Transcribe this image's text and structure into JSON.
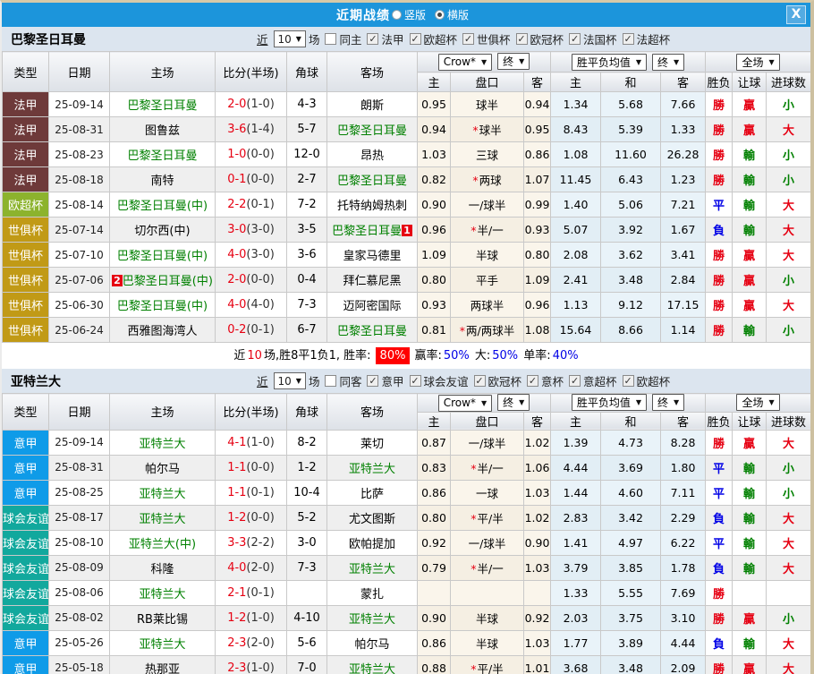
{
  "colors": {
    "titlebar_bg": "#1C95DB",
    "band_bg": "#DCE5EF",
    "odds_bg": "#FAF5EB",
    "avg_bg": "#E9F3F9",
    "win_red": "#E60012",
    "draw_blue": "#0000E6",
    "loss_green": "#008000",
    "type_colors": {
      "法甲": "#6E3A3A",
      "欧超杯": "#8CB32D",
      "世俱杯": "#C19A16",
      "意甲": "#0F9BE8",
      "球会友谊": "#12A89D"
    }
  },
  "titlebar": {
    "title": "近期战绩",
    "radios": [
      {
        "label": "竖版",
        "checked": false
      },
      {
        "label": "横版",
        "checked": true
      }
    ],
    "close_label": "X"
  },
  "table_header": {
    "cols": [
      "类型",
      "日期",
      "主场",
      "比分(半场)",
      "角球",
      "客场"
    ],
    "group1": {
      "dropdown1": "Crow*",
      "dropdown2": "终",
      "subs": [
        "主",
        "盘口",
        "客"
      ]
    },
    "group2": {
      "dropdown1": "胜平负均值",
      "dropdown2": "终",
      "subs": [
        "主",
        "和",
        "客"
      ]
    },
    "group3": {
      "dropdown": "全场",
      "subs": [
        "胜负",
        "让球",
        "进球数"
      ]
    }
  },
  "sections": [
    {
      "team": "巴黎圣日耳曼",
      "filter": {
        "prefix": "近",
        "count": "10",
        "suffix": "场",
        "same_label": "同主",
        "same_checked": false,
        "leagues": [
          "法甲",
          "欧超杯",
          "世俱杯",
          "欧冠杯",
          "法国杯",
          "法超杯"
        ]
      },
      "rows": [
        {
          "type": "法甲",
          "date": "25-09-14",
          "home": "巴黎圣日耳曼",
          "hg": true,
          "hb": "",
          "score": "2-0",
          "half": "(1-0)",
          "corner": "4-3",
          "away": "朗斯",
          "ag": false,
          "ab": "",
          "o1": "0.95",
          "star": false,
          "hcap": "球半",
          "o2": "0.94",
          "a1": "1.34",
          "a2": "5.68",
          "a3": "7.66",
          "r1": "勝",
          "r2": "贏",
          "r3": "小"
        },
        {
          "type": "法甲",
          "date": "25-08-31",
          "home": "图鲁兹",
          "hg": false,
          "hb": "",
          "score": "3-6",
          "half": "(1-4)",
          "corner": "5-7",
          "away": "巴黎圣日耳曼",
          "ag": true,
          "ab": "",
          "o1": "0.94",
          "star": true,
          "hcap": "球半",
          "o2": "0.95",
          "a1": "8.43",
          "a2": "5.39",
          "a3": "1.33",
          "r1": "勝",
          "r2": "贏",
          "r3": "大"
        },
        {
          "type": "法甲",
          "date": "25-08-23",
          "home": "巴黎圣日耳曼",
          "hg": true,
          "hb": "",
          "score": "1-0",
          "half": "(0-0)",
          "corner": "12-0",
          "away": "昂热",
          "ag": false,
          "ab": "",
          "o1": "1.03",
          "star": false,
          "hcap": "三球",
          "o2": "0.86",
          "a1": "1.08",
          "a2": "11.60",
          "a3": "26.28",
          "r1": "勝",
          "r2": "輸",
          "r3": "小"
        },
        {
          "type": "法甲",
          "date": "25-08-18",
          "home": "南特",
          "hg": false,
          "hb": "",
          "score": "0-1",
          "half": "(0-0)",
          "corner": "2-7",
          "away": "巴黎圣日耳曼",
          "ag": true,
          "ab": "",
          "o1": "0.82",
          "star": true,
          "hcap": "两球",
          "o2": "1.07",
          "a1": "11.45",
          "a2": "6.43",
          "a3": "1.23",
          "r1": "勝",
          "r2": "輸",
          "r3": "小"
        },
        {
          "type": "欧超杯",
          "date": "25-08-14",
          "home": "巴黎圣日耳曼(中)",
          "hg": true,
          "hb": "",
          "score": "2-2",
          "half": "(0-1)",
          "corner": "7-2",
          "away": "托特纳姆热刺",
          "ag": false,
          "ab": "",
          "o1": "0.90",
          "star": false,
          "hcap": "一/球半",
          "o2": "0.99",
          "a1": "1.40",
          "a2": "5.06",
          "a3": "7.21",
          "r1": "平",
          "r2": "輸",
          "r3": "大"
        },
        {
          "type": "世俱杯",
          "date": "25-07-14",
          "home": "切尔西(中)",
          "hg": false,
          "hb": "",
          "score": "3-0",
          "half": "(3-0)",
          "corner": "3-5",
          "away": "巴黎圣日耳曼",
          "ag": true,
          "ab": "1",
          "o1": "0.96",
          "star": true,
          "hcap": "半/一",
          "o2": "0.93",
          "a1": "5.07",
          "a2": "3.92",
          "a3": "1.67",
          "r1": "負",
          "r2": "輸",
          "r3": "大"
        },
        {
          "type": "世俱杯",
          "date": "25-07-10",
          "home": "巴黎圣日耳曼(中)",
          "hg": true,
          "hb": "",
          "score": "4-0",
          "half": "(3-0)",
          "corner": "3-6",
          "away": "皇家马德里",
          "ag": false,
          "ab": "",
          "o1": "1.09",
          "star": false,
          "hcap": "半球",
          "o2": "0.80",
          "a1": "2.08",
          "a2": "3.62",
          "a3": "3.41",
          "r1": "勝",
          "r2": "贏",
          "r3": "大"
        },
        {
          "type": "世俱杯",
          "date": "25-07-06",
          "home": "巴黎圣日耳曼(中)",
          "hg": true,
          "hb": "2",
          "score": "2-0",
          "half": "(0-0)",
          "corner": "0-4",
          "away": "拜仁慕尼黑",
          "ag": false,
          "ab": "",
          "o1": "0.80",
          "star": false,
          "hcap": "平手",
          "o2": "1.09",
          "a1": "2.41",
          "a2": "3.48",
          "a3": "2.84",
          "r1": "勝",
          "r2": "贏",
          "r3": "小"
        },
        {
          "type": "世俱杯",
          "date": "25-06-30",
          "home": "巴黎圣日耳曼(中)",
          "hg": true,
          "hb": "",
          "score": "4-0",
          "half": "(4-0)",
          "corner": "7-3",
          "away": "迈阿密国际",
          "ag": false,
          "ab": "",
          "o1": "0.93",
          "star": false,
          "hcap": "两球半",
          "o2": "0.96",
          "a1": "1.13",
          "a2": "9.12",
          "a3": "17.15",
          "r1": "勝",
          "r2": "贏",
          "r3": "大"
        },
        {
          "type": "世俱杯",
          "date": "25-06-24",
          "home": "西雅图海湾人",
          "hg": false,
          "hb": "",
          "score": "0-2",
          "half": "(0-1)",
          "corner": "6-7",
          "away": "巴黎圣日耳曼",
          "ag": true,
          "ab": "",
          "o1": "0.81",
          "star": true,
          "hcap": "两/两球半",
          "o2": "1.08",
          "a1": "15.64",
          "a2": "8.66",
          "a3": "1.14",
          "r1": "勝",
          "r2": "輸",
          "r3": "小"
        }
      ],
      "summary": {
        "parts": [
          {
            "text": "近",
            "style": "k"
          },
          {
            "text": "10",
            "style": "red"
          },
          {
            "text": "场,胜8平1负1, 胜率:",
            "style": "k"
          },
          {
            "text": "80%",
            "style": "rate"
          },
          {
            "text": "赢率:",
            "style": "k"
          },
          {
            "text": "50%",
            "style": "blue"
          },
          {
            "text": " 大:",
            "style": "k"
          },
          {
            "text": "50%",
            "style": "blue"
          },
          {
            "text": " 单率:",
            "style": "k"
          },
          {
            "text": "40%",
            "style": "blue"
          }
        ]
      }
    },
    {
      "team": "亚特兰大",
      "filter": {
        "prefix": "近",
        "count": "10",
        "suffix": "场",
        "same_label": "同客",
        "same_checked": false,
        "leagues": [
          "意甲",
          "球会友谊",
          "欧冠杯",
          "意杯",
          "意超杯",
          "欧超杯"
        ]
      },
      "rows": [
        {
          "type": "意甲",
          "date": "25-09-14",
          "home": "亚特兰大",
          "hg": true,
          "hb": "",
          "score": "4-1",
          "half": "(1-0)",
          "corner": "8-2",
          "away": "莱切",
          "ag": false,
          "ab": "",
          "o1": "0.87",
          "star": false,
          "hcap": "一/球半",
          "o2": "1.02",
          "a1": "1.39",
          "a2": "4.73",
          "a3": "8.28",
          "r1": "勝",
          "r2": "贏",
          "r3": "大"
        },
        {
          "type": "意甲",
          "date": "25-08-31",
          "home": "帕尔马",
          "hg": false,
          "hb": "",
          "score": "1-1",
          "half": "(0-0)",
          "corner": "1-2",
          "away": "亚特兰大",
          "ag": true,
          "ab": "",
          "o1": "0.83",
          "star": true,
          "hcap": "半/一",
          "o2": "1.06",
          "a1": "4.44",
          "a2": "3.69",
          "a3": "1.80",
          "r1": "平",
          "r2": "輸",
          "r3": "小"
        },
        {
          "type": "意甲",
          "date": "25-08-25",
          "home": "亚特兰大",
          "hg": true,
          "hb": "",
          "score": "1-1",
          "half": "(0-1)",
          "corner": "10-4",
          "away": "比萨",
          "ag": false,
          "ab": "",
          "o1": "0.86",
          "star": false,
          "hcap": "一球",
          "o2": "1.03",
          "a1": "1.44",
          "a2": "4.60",
          "a3": "7.11",
          "r1": "平",
          "r2": "輸",
          "r3": "小"
        },
        {
          "type": "球会友谊",
          "date": "25-08-17",
          "home": "亚特兰大",
          "hg": true,
          "hb": "",
          "score": "1-2",
          "half": "(0-0)",
          "corner": "5-2",
          "away": "尤文图斯",
          "ag": false,
          "ab": "",
          "o1": "0.80",
          "star": true,
          "hcap": "平/半",
          "o2": "1.02",
          "a1": "2.83",
          "a2": "3.42",
          "a3": "2.29",
          "r1": "負",
          "r2": "輸",
          "r3": "大"
        },
        {
          "type": "球会友谊",
          "date": "25-08-10",
          "home": "亚特兰大(中)",
          "hg": true,
          "hb": "",
          "score": "3-3",
          "half": "(2-2)",
          "corner": "3-0",
          "away": "欧帕提加",
          "ag": false,
          "ab": "",
          "o1": "0.92",
          "star": false,
          "hcap": "一/球半",
          "o2": "0.90",
          "a1": "1.41",
          "a2": "4.97",
          "a3": "6.22",
          "r1": "平",
          "r2": "輸",
          "r3": "大"
        },
        {
          "type": "球会友谊",
          "date": "25-08-09",
          "home": "科隆",
          "hg": false,
          "hb": "",
          "score": "4-0",
          "half": "(2-0)",
          "corner": "7-3",
          "away": "亚特兰大",
          "ag": true,
          "ab": "",
          "o1": "0.79",
          "star": true,
          "hcap": "半/一",
          "o2": "1.03",
          "a1": "3.79",
          "a2": "3.85",
          "a3": "1.78",
          "r1": "負",
          "r2": "輸",
          "r3": "大"
        },
        {
          "type": "球会友谊",
          "date": "25-08-06",
          "home": "亚特兰大",
          "hg": true,
          "hb": "",
          "score": "2-1",
          "half": "(0-1)",
          "corner": "",
          "away": "蒙扎",
          "ag": false,
          "ab": "",
          "o1": "",
          "star": false,
          "hcap": "",
          "o2": "",
          "a1": "1.33",
          "a2": "5.55",
          "a3": "7.69",
          "r1": "勝",
          "r2": "",
          "r3": ""
        },
        {
          "type": "球会友谊",
          "date": "25-08-02",
          "home": "RB莱比锡",
          "hg": false,
          "hb": "",
          "score": "1-2",
          "half": "(1-0)",
          "corner": "4-10",
          "away": "亚特兰大",
          "ag": true,
          "ab": "",
          "o1": "0.90",
          "star": false,
          "hcap": "半球",
          "o2": "0.92",
          "a1": "2.03",
          "a2": "3.75",
          "a3": "3.10",
          "r1": "勝",
          "r2": "贏",
          "r3": "小"
        },
        {
          "type": "意甲",
          "date": "25-05-26",
          "home": "亚特兰大",
          "hg": true,
          "hb": "",
          "score": "2-3",
          "half": "(2-0)",
          "corner": "5-6",
          "away": "帕尔马",
          "ag": false,
          "ab": "",
          "o1": "0.86",
          "star": false,
          "hcap": "半球",
          "o2": "1.03",
          "a1": "1.77",
          "a2": "3.89",
          "a3": "4.44",
          "r1": "負",
          "r2": "輸",
          "r3": "大"
        },
        {
          "type": "意甲",
          "date": "25-05-18",
          "home": "热那亚",
          "hg": false,
          "hb": "",
          "score": "2-3",
          "half": "(1-0)",
          "corner": "7-0",
          "away": "亚特兰大",
          "ag": true,
          "ab": "",
          "o1": "0.88",
          "star": true,
          "hcap": "平/半",
          "o2": "1.01",
          "a1": "3.68",
          "a2": "3.48",
          "a3": "2.09",
          "r1": "勝",
          "r2": "贏",
          "r3": "大"
        }
      ]
    }
  ]
}
